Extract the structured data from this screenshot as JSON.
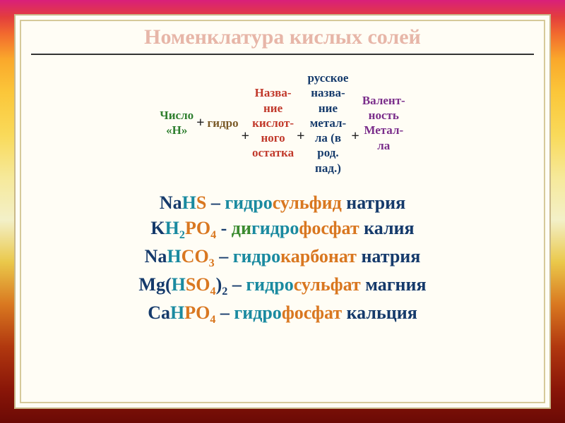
{
  "title": "Номенклатура кислых солей",
  "colors": {
    "title": "#e7b6a8",
    "green": "#2f7f2f",
    "brown": "#7a5a28",
    "red": "#c1392b",
    "navy": "#153a6b",
    "violet": "#7a2d8a",
    "cyan": "#1a8aa0",
    "orange": "#d97720"
  },
  "pattern": {
    "p1_line1": "Число",
    "p1_line2": "«Н»",
    "plus": "+",
    "p2": "гидро",
    "p3_line1": "Назва-",
    "p3_line2": "ние",
    "p3_line3": "кислот-",
    "p3_line4": "ного",
    "p3_line5": "остатка",
    "p4_line1": "русское",
    "p4_line2": "назва-",
    "p4_line3": "ние",
    "p4_line4": "метал-",
    "p4_line5": "ла (в",
    "p4_line6": "род.",
    "p4_line7": "пад.)",
    "p5_line1": "Валент-",
    "p5_line2": "ность",
    "p5_line3": "Метал-",
    "p5_line4": "ла"
  },
  "ex1": {
    "f1": "Na",
    "f2": "H",
    "f3": "S",
    "dash": " – ",
    "w1": "гидро",
    "w2": "сульфид",
    "w3": " натрия"
  },
  "ex2": {
    "f1": "K",
    "f2": "H",
    "s2": "2",
    "f3": "PO",
    "s3": "4",
    "dash": "  - ",
    "w0": "ди",
    "w1": "гидро",
    "w2": "фосфат",
    "w3": " калия"
  },
  "ex3": {
    "f1": "Na",
    "f2": "H",
    "f3": "CO",
    "s3": "3",
    "dash": " – ",
    "w1": "гидро",
    "w2": "карбонат",
    "w3": " натрия"
  },
  "ex4": {
    "f1": "Mg(",
    "f2": "H",
    "f3": "SO",
    "s3": "4",
    "f4": ")",
    "s4": "2",
    "dash": " – ",
    "w1": "гидро",
    "w2": "сульфат",
    "w3": " магния"
  },
  "ex5": {
    "f1": "Ca",
    "f2": "H",
    "f3": "PO",
    "s3": "4",
    "dash": " – ",
    "w1": "гидро",
    "w2": "фосфат",
    "w3": " кальция"
  }
}
